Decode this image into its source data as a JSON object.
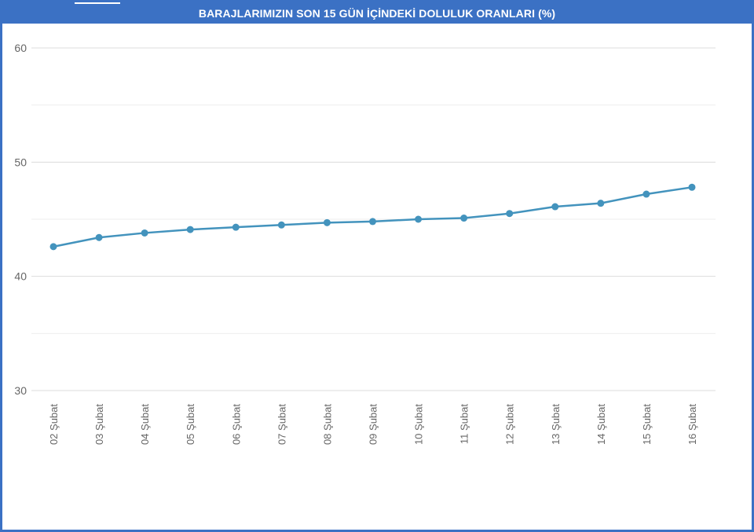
{
  "chart_data": {
    "type": "line",
    "title": "BARAJLARIMIZIN SON 15 GÜN İÇİNDEKİ DOLULUK ORANLARI (%)",
    "categories": [
      "02 Şubat",
      "03 Şubat",
      "04 Şubat",
      "05 Şubat",
      "06 Şubat",
      "07 Şubat",
      "08 Şubat",
      "09 Şubat",
      "10 Şubat",
      "11 Şubat",
      "12 Şubat",
      "13 Şubat",
      "14 Şubat",
      "15 Şubat",
      "16 Şubat"
    ],
    "values": [
      42.6,
      43.4,
      43.8,
      44.1,
      44.3,
      44.5,
      44.7,
      44.8,
      45.0,
      45.1,
      45.5,
      46.1,
      46.4,
      47.2,
      47.8
    ],
    "ylim": [
      30,
      60
    ],
    "yticks": [
      30,
      40,
      50,
      60
    ],
    "minor_gridlines": [
      35,
      45,
      55
    ],
    "grid": true,
    "colors": {
      "line": "#4393bd",
      "frame": "#3b71c4",
      "grid": "#dcdcdc",
      "text": "#666666"
    }
  }
}
